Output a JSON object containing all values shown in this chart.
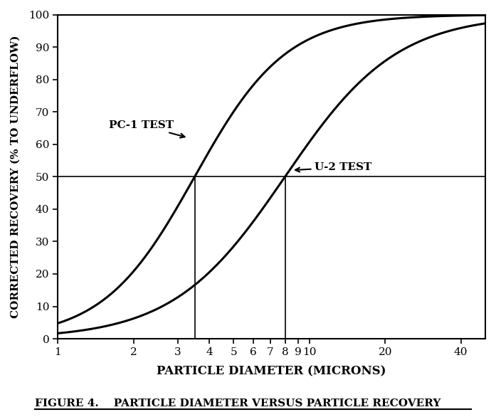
{
  "title": "FIGURE 4.    PARTICLE DIAMETER VERSUS PARTICLE RECOVERY",
  "xlabel": "PARTICLE DIAMETER (MICRONS)",
  "ylabel": "CORRECTED RECOVERY (% TO UNDERFLOW)",
  "xmin": 1,
  "xmax": 50,
  "ymin": 0,
  "ymax": 100,
  "xticks": [
    1,
    2,
    3,
    4,
    5,
    6,
    7,
    8,
    9,
    10,
    20,
    40
  ],
  "xtick_labels": [
    "1",
    "2",
    "3",
    "4",
    "5",
    "6",
    "7",
    "8",
    "9",
    "10",
    "20",
    "40"
  ],
  "yticks": [
    0,
    10,
    20,
    30,
    40,
    50,
    60,
    70,
    80,
    90,
    100
  ],
  "pc1_d50": 3.5,
  "u2_d50": 8.0,
  "pc1_label": "PC-1 TEST",
  "u2_label": "U-2 TEST",
  "line_color": "#000000",
  "background_color": "#ffffff",
  "annotation_line_color": "#000000",
  "vline_x1": 3.5,
  "vline_x2": 8.0,
  "hline_y": 50
}
